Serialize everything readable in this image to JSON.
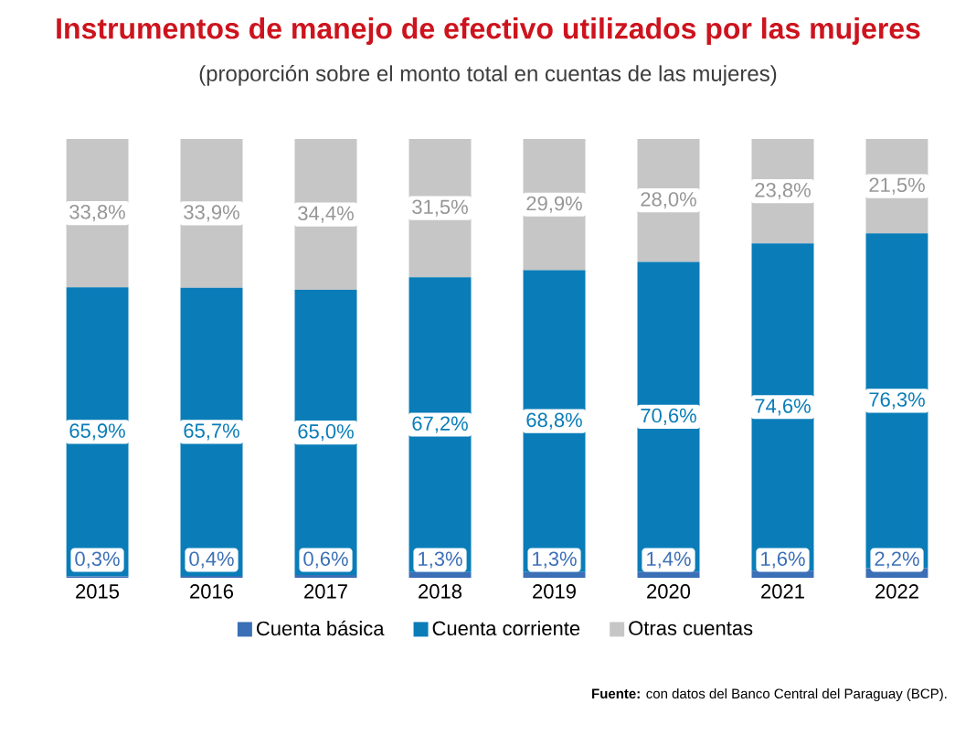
{
  "chart_data": {
    "type": "bar",
    "stacked": true,
    "title": "Instrumentos de manejo de efectivo utilizados por las mujeres",
    "subtitle": "(proporción sobre el monto total en cuentas de las mujeres)",
    "categories": [
      "2015",
      "2016",
      "2017",
      "2018",
      "2019",
      "2020",
      "2021",
      "2022"
    ],
    "series": [
      {
        "name": "Cuenta básica",
        "color": "#3b6fb6",
        "values": [
          0.3,
          0.4,
          0.6,
          1.3,
          1.3,
          1.4,
          1.6,
          2.2
        ],
        "value_labels": [
          "0,3%",
          "0,4%",
          "0,6%",
          "1,3%",
          "1,3%",
          "1,4%",
          "1,6%",
          "2,2%"
        ]
      },
      {
        "name": "Cuenta corriente",
        "color": "#0a7db8",
        "values": [
          65.9,
          65.7,
          65.0,
          67.2,
          68.8,
          70.6,
          74.6,
          76.3
        ],
        "value_labels": [
          "65,9%",
          "65,7%",
          "65,0%",
          "67,2%",
          "68,8%",
          "70,6%",
          "74,6%",
          "76,3%"
        ]
      },
      {
        "name": "Otras cuentas",
        "color": "#c6c6c6",
        "values": [
          33.8,
          33.9,
          34.4,
          31.5,
          29.9,
          28.0,
          23.8,
          21.5
        ],
        "value_labels": [
          "33,8%",
          "33,9%",
          "34,4%",
          "31,5%",
          "29,9%",
          "28,0%",
          "23,8%",
          "21,5%"
        ]
      }
    ],
    "legend": "bottom",
    "annotations": [
      "**Fuente:** con datos del Banco Central del Paraguay (BCP)."
    ]
  }
}
